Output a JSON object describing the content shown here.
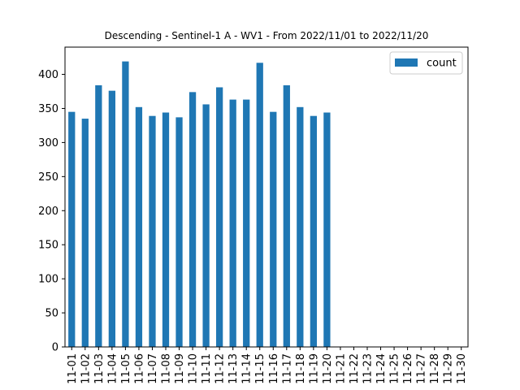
{
  "chart_data": {
    "type": "bar",
    "title": "Descending - Sentinel-1 A - WV1 - From 2022/11/01 to 2022/11/20",
    "xlabel": "",
    "ylabel": "",
    "categories": [
      "11-01",
      "11-02",
      "11-03",
      "11-04",
      "11-05",
      "11-06",
      "11-07",
      "11-08",
      "11-09",
      "11-10",
      "11-11",
      "11-12",
      "11-13",
      "11-14",
      "11-15",
      "11-16",
      "11-17",
      "11-18",
      "11-19",
      "11-20",
      "11-21",
      "11-22",
      "11-23",
      "11-24",
      "11-25",
      "11-26",
      "11-27",
      "11-28",
      "11-29",
      "11-30"
    ],
    "series": [
      {
        "name": "count",
        "color": "#1f77b4",
        "values": [
          345,
          335,
          384,
          376,
          419,
          352,
          339,
          344,
          337,
          374,
          356,
          381,
          363,
          363,
          417,
          345,
          384,
          352,
          339,
          344,
          null,
          null,
          null,
          null,
          null,
          null,
          null,
          null,
          null,
          null
        ]
      }
    ],
    "ylim": [
      0,
      440
    ],
    "yticks": [
      0,
      50,
      100,
      150,
      200,
      250,
      300,
      350,
      400
    ],
    "grid": false,
    "legend_position": "top-right"
  }
}
